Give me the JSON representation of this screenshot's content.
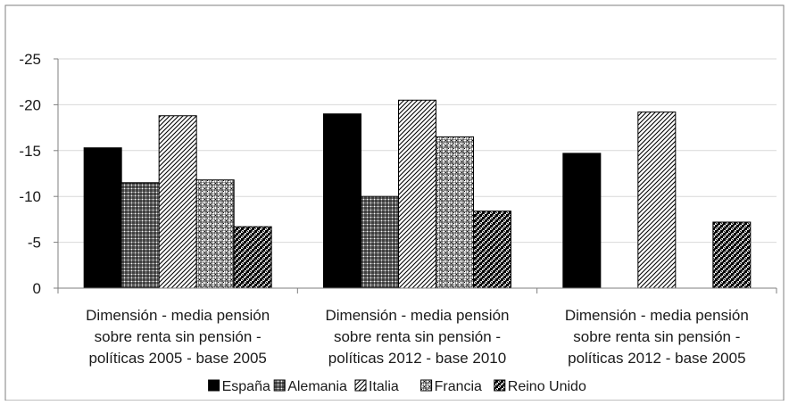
{
  "chart_data": {
    "type": "bar",
    "categories": [
      [
        "Dimensión - media pensión",
        "sobre renta sin pensión -",
        "políticas 2005 - base 2005"
      ],
      [
        "Dimensión - media pensión",
        "sobre renta sin pensión -",
        "políticas 2012 - base 2010"
      ],
      [
        "Dimensión - media pensión",
        "sobre renta sin pensión -",
        "políticas 2012 - base 2005"
      ]
    ],
    "series": [
      {
        "name": "España",
        "values": [
          -15.3,
          -19.0,
          -14.7
        ],
        "pattern": "solid"
      },
      {
        "name": "Alemania",
        "values": [
          -11.5,
          -10.0,
          null
        ],
        "pattern": "grid"
      },
      {
        "name": "Italia",
        "values": [
          -18.8,
          -20.5,
          -19.2
        ],
        "pattern": "diagonal"
      },
      {
        "name": "Francia",
        "values": [
          -11.8,
          -16.5,
          null
        ],
        "pattern": "dots"
      },
      {
        "name": "Reino Unido",
        "values": [
          -6.7,
          -8.4,
          -7.2
        ],
        "pattern": "checker"
      }
    ],
    "yticks": [
      "-25",
      "-20",
      "-15",
      "-10",
      "-5",
      "0"
    ],
    "ylim": [
      0,
      -25
    ],
    "y_reversed": true,
    "grid": true,
    "legend_position": "bottom",
    "colors": {
      "bar": "#000000",
      "grid": "#d9d9d9",
      "axis": "#7f7f7f",
      "frame": "#7f7f7f"
    }
  }
}
